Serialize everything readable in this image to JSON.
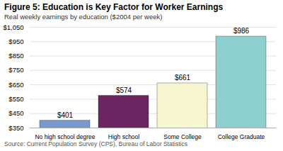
{
  "chart_data": {
    "type": "bar",
    "title": "Figure 5: Education is Key Factor for Worker Earnings",
    "subtitle": "Real weekly earnings by education ($2004 per week)",
    "source": "Source: Current Population Survey (CPS), Bureau of Labor Statistics",
    "categories": [
      "No high school degree",
      "High school",
      "Some College",
      "College Graduate"
    ],
    "values": [
      401,
      574,
      661,
      986
    ],
    "value_labels": [
      "$401",
      "$574",
      "$661",
      "$986"
    ],
    "colors": [
      "#7799cc",
      "#6b2560",
      "#f5f5d0",
      "#8ecfcf"
    ],
    "ylim": [
      350,
      1050
    ],
    "yticks": [
      {
        "value": 350,
        "label": "$350"
      },
      {
        "value": 450,
        "label": "$450"
      },
      {
        "value": 550,
        "label": "$550"
      },
      {
        "value": 650,
        "label": "$650"
      },
      {
        "value": 750,
        "label": "$750"
      },
      {
        "value": 850,
        "label": "$850"
      },
      {
        "value": 950,
        "label": "$950"
      },
      {
        "value": 1050,
        "label": "$1,050"
      }
    ],
    "grid": true,
    "data_labels": true
  }
}
